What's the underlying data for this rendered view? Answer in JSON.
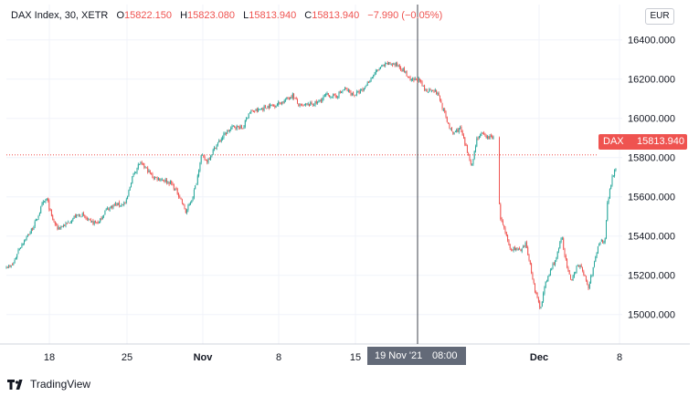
{
  "legend": {
    "symbol": "DAX Index, 30, XETR",
    "o_label": "O",
    "o_value": "15822.150",
    "h_label": "H",
    "h_value": "15823.080",
    "l_label": "L",
    "l_value": "15813.940",
    "c_label": "C",
    "c_value": "15813.940",
    "change": "−7.990 (−0.05%)"
  },
  "currency": "EUR",
  "price_tag": {
    "symbol": "DAX",
    "value": "15813.940"
  },
  "crosshair_time": {
    "date": "19 Nov '21",
    "time": "08:00"
  },
  "brand": "TradingView",
  "colors": {
    "up": "#26a69a",
    "down": "#ef5350",
    "tag": "#ef5350",
    "crosshair": "#636a78"
  },
  "chart_data": {
    "type": "candlestick",
    "interval": "30 min",
    "ylim": [
      14850,
      16600
    ],
    "y_ticks": [
      15000,
      15200,
      15400,
      15600,
      15800,
      16000,
      16200,
      16400
    ],
    "y_tick_labels": [
      "15000.000",
      "15200.000",
      "15400.000",
      "15600.000",
      "15800.000",
      "16000.000",
      "16200.000",
      "16400.000"
    ],
    "x_ticks": [
      {
        "label": "18",
        "bold": false
      },
      {
        "label": "25",
        "bold": false
      },
      {
        "label": "Nov",
        "bold": true
      },
      {
        "label": "8",
        "bold": false
      },
      {
        "label": "15",
        "bold": false
      },
      {
        "label": "Dec",
        "bold": true
      },
      {
        "label": "8",
        "bold": false
      }
    ],
    "last_price": 15813.94,
    "price_path": [
      [
        0,
        15250
      ],
      [
        0.006,
        15240
      ],
      [
        0.012,
        15260
      ],
      [
        0.02,
        15330
      ],
      [
        0.03,
        15380
      ],
      [
        0.04,
        15420
      ],
      [
        0.05,
        15480
      ],
      [
        0.06,
        15560
      ],
      [
        0.068,
        15590
      ],
      [
        0.075,
        15500
      ],
      [
        0.085,
        15440
      ],
      [
        0.1,
        15460
      ],
      [
        0.115,
        15500
      ],
      [
        0.125,
        15510
      ],
      [
        0.14,
        15470
      ],
      [
        0.155,
        15470
      ],
      [
        0.165,
        15530
      ],
      [
        0.18,
        15560
      ],
      [
        0.19,
        15560
      ],
      [
        0.2,
        15570
      ],
      [
        0.21,
        15700
      ],
      [
        0.222,
        15770
      ],
      [
        0.232,
        15750
      ],
      [
        0.245,
        15700
      ],
      [
        0.26,
        15690
      ],
      [
        0.275,
        15670
      ],
      [
        0.29,
        15600
      ],
      [
        0.3,
        15520
      ],
      [
        0.31,
        15590
      ],
      [
        0.318,
        15680
      ],
      [
        0.325,
        15810
      ],
      [
        0.335,
        15780
      ],
      [
        0.35,
        15860
      ],
      [
        0.365,
        15920
      ],
      [
        0.38,
        15960
      ],
      [
        0.395,
        15950
      ],
      [
        0.405,
        16030
      ],
      [
        0.42,
        16040
      ],
      [
        0.435,
        16060
      ],
      [
        0.45,
        16070
      ],
      [
        0.465,
        16090
      ],
      [
        0.478,
        16120
      ],
      [
        0.49,
        16060
      ],
      [
        0.505,
        16070
      ],
      [
        0.52,
        16080
      ],
      [
        0.535,
        16120
      ],
      [
        0.55,
        16110
      ],
      [
        0.565,
        16150
      ],
      [
        0.58,
        16120
      ],
      [
        0.595,
        16140
      ],
      [
        0.61,
        16210
      ],
      [
        0.625,
        16260
      ],
      [
        0.64,
        16280
      ],
      [
        0.655,
        16270
      ],
      [
        0.665,
        16240
      ],
      [
        0.675,
        16190
      ],
      [
        0.688,
        16200
      ],
      [
        0.7,
        16140
      ],
      [
        0.712,
        16150
      ],
      [
        0.722,
        16120
      ],
      [
        0.728,
        16060
      ],
      [
        0.735,
        16000
      ],
      [
        0.745,
        15920
      ],
      [
        0.758,
        15950
      ],
      [
        0.77,
        15830
      ],
      [
        0.778,
        15760
      ],
      [
        0.786,
        15900
      ],
      [
        0.795,
        15920
      ],
      [
        0.805,
        15900
      ],
      [
        0.815,
        15910
      ],
      [
        0.825,
        15500
      ],
      [
        0.833,
        15420
      ],
      [
        0.842,
        15330
      ],
      [
        0.85,
        15340
      ],
      [
        0.86,
        15320
      ],
      [
        0.868,
        15360
      ],
      [
        0.876,
        15240
      ],
      [
        0.884,
        15110
      ],
      [
        0.892,
        15030
      ],
      [
        0.9,
        15150
      ],
      [
        0.91,
        15230
      ],
      [
        0.92,
        15300
      ],
      [
        0.928,
        15400
      ],
      [
        0.936,
        15250
      ],
      [
        0.944,
        15160
      ],
      [
        0.954,
        15260
      ],
      [
        0.964,
        15220
      ],
      [
        0.972,
        15130
      ],
      [
        0.98,
        15230
      ],
      [
        0.99,
        15370
      ],
      [
        1.0,
        15380
      ],
      [
        1.004,
        15560
      ],
      [
        1.012,
        15700
      ],
      [
        1.02,
        15770
      ],
      [
        1.026,
        15813.94
      ]
    ]
  }
}
